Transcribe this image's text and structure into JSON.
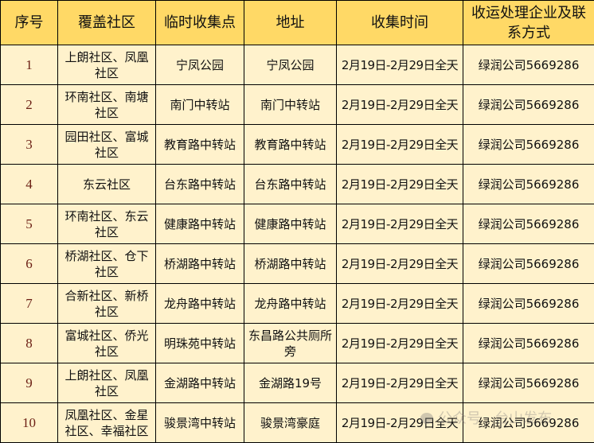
{
  "headers": [
    "序号",
    "覆盖社区",
    "临时收集点",
    "地址",
    "收集时间",
    "收运处理企业及联系方式"
  ],
  "rows": [
    {
      "no": "1",
      "community": "上朗社区、凤凰社区",
      "point": "宁凤公园",
      "address": "宁凤公园",
      "time": "2月19日-2月29日全天",
      "contact": "绿润公司5669286"
    },
    {
      "no": "2",
      "community": "环南社区、南塘社区",
      "point": "南门中转站",
      "address": "南门中转站",
      "time": "2月19日-2月29日全天",
      "contact": "绿润公司5669286"
    },
    {
      "no": "3",
      "community": "园田社区、富城社区",
      "point": "教育路中转站",
      "address": "教育路中转站",
      "time": "2月19日-2月29日全天",
      "contact": "绿润公司5669286"
    },
    {
      "no": "4",
      "community": "东云社区",
      "point": "台东路中转站",
      "address": "台东路中转站",
      "time": "2月19日-2月29日全天",
      "contact": "绿润公司5669286"
    },
    {
      "no": "5",
      "community": "环南社区、东云社区",
      "point": "健康路中转站",
      "address": "健康路中转站",
      "time": "2月19日-2月29日全天",
      "contact": "绿润公司5669286"
    },
    {
      "no": "6",
      "community": "桥湖社区、仓下社区",
      "point": "桥湖路中转站",
      "address": "桥湖路中转站",
      "time": "2月19日-2月29日全天",
      "contact": "绿润公司5669286"
    },
    {
      "no": "7",
      "community": "合新社区、新桥社区",
      "point": "龙舟路中转站",
      "address": "龙舟路中转站",
      "time": "2月19日-2月29日全天",
      "contact": "绿润公司5669286"
    },
    {
      "no": "8",
      "community": "富城社区、侨光社区",
      "point": "明珠苑中转站",
      "address": "东昌路公共厕所旁",
      "time": "2月19日-2月29日全天",
      "contact": "绿润公司5669286"
    },
    {
      "no": "9",
      "community": "上朗社区、凤凰社区",
      "point": "金湖路中转站",
      "address": "金湖路19号",
      "time": "2月19日-2月29日全天",
      "contact": "绿润公司5669286"
    },
    {
      "no": "10",
      "community": "凤凰社区、金星社区、幸福社区",
      "point": "骏景湾中转站",
      "address": "骏景湾豪庭",
      "time": "2月19日-2月29日全天",
      "contact": "绿润公司5669286"
    }
  ],
  "watermark": "公众号 · 台山发布",
  "colors": {
    "header_bg": "#FFD966",
    "body_bg": "#FFF2CC",
    "number_text": "#6b1f14"
  }
}
